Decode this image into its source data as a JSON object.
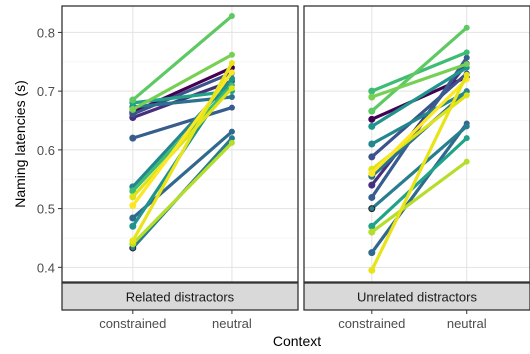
{
  "chart_data": {
    "type": "line",
    "ylabel": "Naming latencies (s)",
    "xlabel": "Context",
    "categories": [
      "constrained",
      "neutral"
    ],
    "ylim": [
      0.375,
      0.845
    ],
    "yticks": [
      0.4,
      0.5,
      0.6,
      0.7,
      0.8
    ],
    "ytick_labels": [
      "0.4",
      "0.5",
      "0.6",
      "0.7",
      "0.8"
    ],
    "grid": true,
    "panels": [
      {
        "label": "Related distractors",
        "series": [
          {
            "values": [
              0.664,
              0.74
            ],
            "color": "#440154"
          },
          {
            "values": [
              0.655,
              0.717
            ],
            "color": "#46307e"
          },
          {
            "values": [
              0.661,
              0.731
            ],
            "color": "#3b528b"
          },
          {
            "values": [
              0.62,
              0.672
            ],
            "color": "#365d8d"
          },
          {
            "values": [
              0.484,
              0.631
            ],
            "color": "#31688e"
          },
          {
            "values": [
              0.673,
              0.69
            ],
            "color": "#2c728e"
          },
          {
            "values": [
              0.433,
              0.62
            ],
            "color": "#287d8e"
          },
          {
            "values": [
              0.537,
              0.72
            ],
            "color": "#23888e"
          },
          {
            "values": [
              0.47,
              0.722
            ],
            "color": "#1f948c"
          },
          {
            "values": [
              0.68,
              0.7
            ],
            "color": "#20a386"
          },
          {
            "values": [
              0.53,
              0.71
            ],
            "color": "#3dbc74"
          },
          {
            "values": [
              0.685,
              0.828
            ],
            "color": "#5ec962"
          },
          {
            "values": [
              0.669,
              0.762
            ],
            "color": "#75d054"
          },
          {
            "values": [
              0.44,
              0.612
            ],
            "color": "#b5de2b"
          },
          {
            "values": [
              0.52,
              0.705
            ],
            "color": "#dde318"
          },
          {
            "values": [
              0.505,
              0.732
            ],
            "color": "#fde725"
          },
          {
            "values": [
              0.445,
              0.748
            ],
            "color": "#e8e419"
          }
        ]
      },
      {
        "label": "Unrelated distractors",
        "series": [
          {
            "values": [
              0.652,
              0.724
            ],
            "color": "#440154"
          },
          {
            "values": [
              0.54,
              0.747
            ],
            "color": "#46307e"
          },
          {
            "values": [
              0.588,
              0.73
            ],
            "color": "#3b528b"
          },
          {
            "values": [
              0.519,
              0.757
            ],
            "color": "#365d8d"
          },
          {
            "values": [
              0.425,
              0.645
            ],
            "color": "#31688e"
          },
          {
            "values": [
              0.555,
              0.7
            ],
            "color": "#2c728e"
          },
          {
            "values": [
              0.5,
              0.64
            ],
            "color": "#287d8e"
          },
          {
            "values": [
              0.61,
              0.699
            ],
            "color": "#23888e"
          },
          {
            "values": [
              0.64,
              0.74
            ],
            "color": "#1f948c"
          },
          {
            "values": [
              0.47,
              0.62
            ],
            "color": "#20a386"
          },
          {
            "values": [
              0.7,
              0.766
            ],
            "color": "#3dbc74"
          },
          {
            "values": [
              0.666,
              0.808
            ],
            "color": "#5ec962"
          },
          {
            "values": [
              0.69,
              0.746
            ],
            "color": "#75d054"
          },
          {
            "values": [
              0.46,
              0.58
            ],
            "color": "#b5de2b"
          },
          {
            "values": [
              0.567,
              0.693
            ],
            "color": "#dde318"
          },
          {
            "values": [
              0.56,
              0.72
            ],
            "color": "#fde725"
          },
          {
            "values": [
              0.395,
              0.728
            ],
            "color": "#e8e419"
          }
        ]
      }
    ]
  }
}
